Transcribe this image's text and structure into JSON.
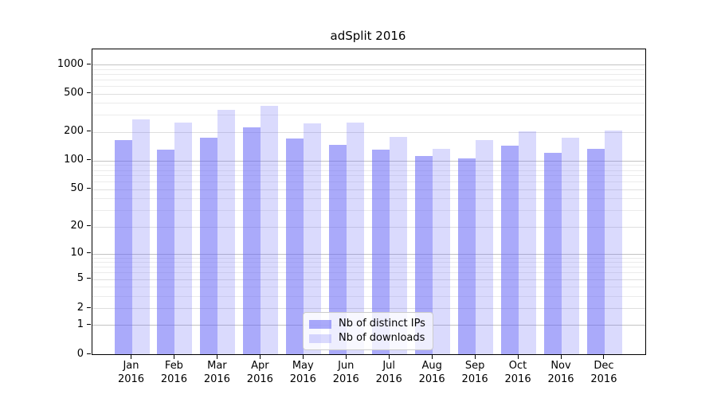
{
  "chart_data": {
    "type": "bar",
    "title": "adSplit 2016",
    "months": [
      "Jan",
      "Feb",
      "Mar",
      "Apr",
      "May",
      "Jun",
      "Jul",
      "Aug",
      "Sep",
      "Oct",
      "Nov",
      "Dec"
    ],
    "year_label": "2016",
    "categories": [
      "Jan 2016",
      "Feb 2016",
      "Mar 2016",
      "Apr 2016",
      "May 2016",
      "Jun 2016",
      "Jul 2016",
      "Aug 2016",
      "Sep 2016",
      "Oct 2016",
      "Nov 2016",
      "Dec 2016"
    ],
    "series": [
      {
        "name": "Nb of distinct IPs",
        "color": "rgba(100,100,245,0.55)",
        "values": [
          165,
          131,
          175,
          222,
          171,
          147,
          131,
          112,
          106,
          145,
          122,
          134
        ]
      },
      {
        "name": "Nb of downloads",
        "color": "rgba(100,100,245,0.24)",
        "values": [
          268,
          250,
          340,
          373,
          245,
          250,
          177,
          133,
          164,
          203,
          175,
          207
        ]
      }
    ],
    "yscale": "log10(1+v)",
    "y_ticks": [
      0,
      1,
      2,
      5,
      10,
      20,
      50,
      100,
      200,
      500,
      1000
    ],
    "y_major_lines": [
      1,
      10,
      100,
      1000
    ],
    "y_labeled_minor_lines": [
      2,
      5,
      20,
      50,
      200,
      500
    ],
    "y_unlabeled_minor_lines": [
      3,
      4,
      6,
      7,
      8,
      9,
      30,
      40,
      60,
      70,
      80,
      90,
      300,
      400,
      600,
      700,
      800,
      900
    ],
    "ylim": [
      0,
      1436
    ],
    "grid": true,
    "legend_position": "lower center",
    "colors": {
      "major_grid": "#c3c3c3",
      "labeled_minor_grid": "#dfdfdf",
      "minor_grid": "#ebebeb",
      "spine": "#000000",
      "legend_border": "#cccccc",
      "legend_bg": "rgba(255,255,255,0.8)",
      "text": "#000000"
    }
  }
}
